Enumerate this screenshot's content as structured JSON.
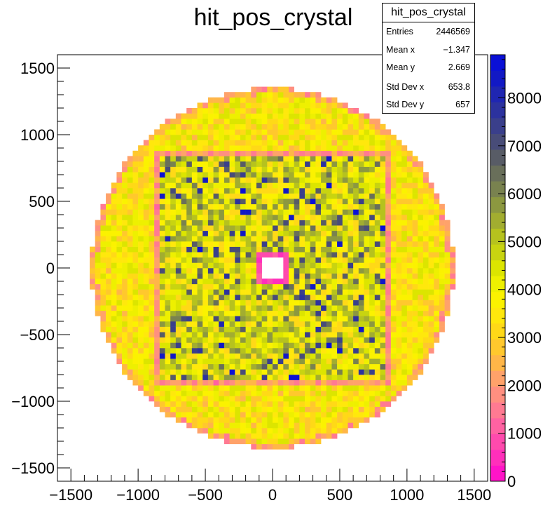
{
  "chart_data": {
    "type": "heatmap",
    "title": "hit_pos_crystal",
    "xlabel": "",
    "ylabel": "",
    "xlim": [
      -1600,
      1600
    ],
    "ylim": [
      -1600,
      1600
    ],
    "x_ticks": [
      -1500,
      -1000,
      -500,
      0,
      500,
      1000,
      1500
    ],
    "x_tick_labels": [
      "−1500",
      "−1000",
      "−500",
      "0",
      "500",
      "1000",
      "1500"
    ],
    "y_ticks": [
      -1500,
      -1000,
      -500,
      0,
      500,
      1000,
      1500
    ],
    "y_tick_labels": [
      "−1500",
      "−1000",
      "−500",
      "0",
      "500",
      "1000",
      "1500"
    ],
    "z_range": [
      0,
      8900
    ],
    "z_ticks": [
      0,
      1000,
      2000,
      3000,
      4000,
      5000,
      6000,
      7000,
      8000
    ],
    "z_tick_labels": [
      "0",
      "1000",
      "2000",
      "3000",
      "4000",
      "5000",
      "6000",
      "7000",
      "8000"
    ],
    "palette": [
      "#ff14c8",
      "#ff2fbb",
      "#ff4aad",
      "#ff62a2",
      "#ff7a92",
      "#ff8f80",
      "#ffa26a",
      "#ffb648",
      "#ffc82d",
      "#ffd917",
      "#ffe80c",
      "#fbf200",
      "#eef000",
      "#dce500",
      "#c8d410",
      "#b6c21e",
      "#a2ad30",
      "#8c9840",
      "#79824f",
      "#696f5a",
      "#585c66",
      "#484c78",
      "#3a3f8b",
      "#2c329e",
      "#1f26b2",
      "#1219c5",
      "#0a10d6"
    ],
    "distribution": {
      "disk_radius": 1350,
      "center_hole_half_width": 100,
      "square_ring_half_width": 870
    },
    "stats": {
      "name": "hit_pos_crystal",
      "entries_label": "Entries",
      "entries": "2446569",
      "mean_x_label": "Mean x",
      "mean_x": "−1.347",
      "mean_y_label": "Mean y",
      "mean_y": "2.669",
      "std_x_label": "Std Dev x",
      "std_x": "653.8",
      "std_y_label": "Std Dev y",
      "std_y": "657"
    }
  }
}
